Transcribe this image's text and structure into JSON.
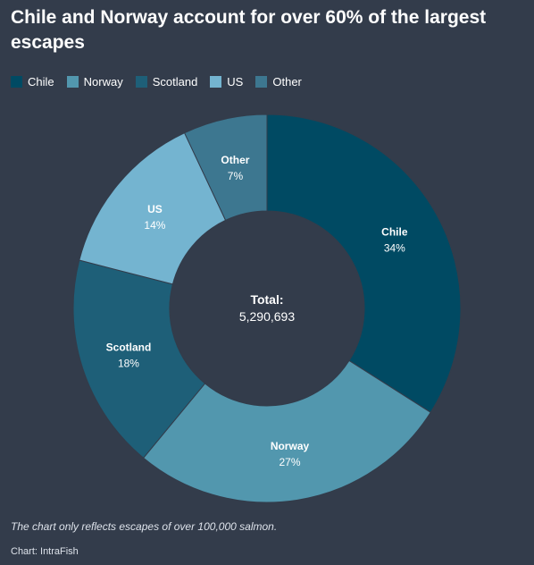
{
  "title": "Chile and Norway account for over 60% of the largest escapes",
  "footnote": "The chart only reflects escapes of over 100,000 salmon.",
  "credit": "Chart: IntraFish",
  "colors": {
    "background": "#333c4b",
    "Chile": "#004a63",
    "Norway": "#5297ae",
    "Scotland": "#1e5f78",
    "US": "#74b4d0",
    "Other": "#3d7790"
  },
  "chart_data": {
    "type": "pie",
    "style": "donut",
    "legend_position": "top-left",
    "center_label": "Total:",
    "center_value": "5,290,693",
    "slices": [
      {
        "name": "Chile",
        "value": 34,
        "label": "34%"
      },
      {
        "name": "Norway",
        "value": 27,
        "label": "27%"
      },
      {
        "name": "Scotland",
        "value": 18,
        "label": "18%"
      },
      {
        "name": "US",
        "value": 14,
        "label": "14%"
      },
      {
        "name": "Other",
        "value": 7,
        "label": "7%"
      }
    ]
  }
}
